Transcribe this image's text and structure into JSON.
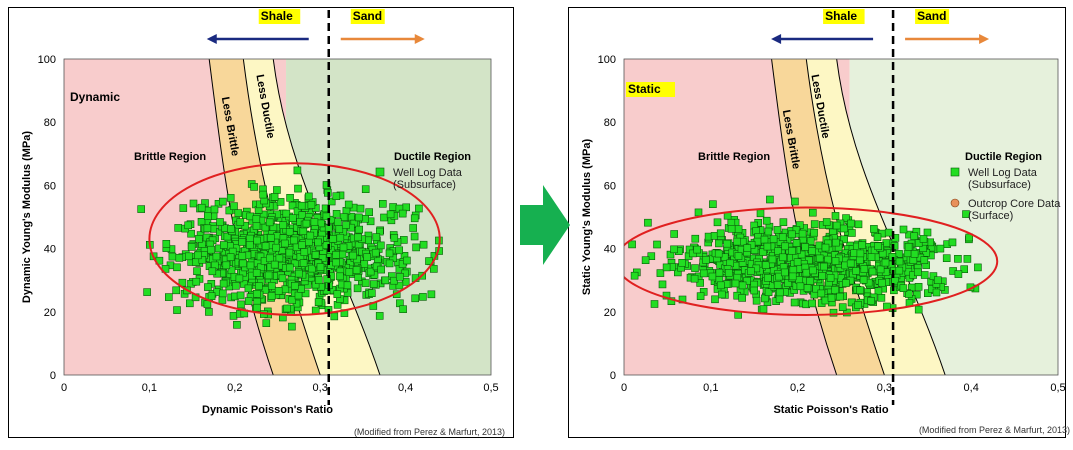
{
  "colors": {
    "brittle_zone": "#f8cccc",
    "ductile_zone_dynamic": "#d3e4c7",
    "ductile_zone_static": "#e6f1dc",
    "less_brittle_band": "#f8d79a",
    "less_ductile_band": "#fdf7c4",
    "marker_fill": "#22dd22",
    "marker_stroke": "#0a5a0a",
    "ellipse": "#e02020",
    "shale_arrow": "#1a2a80",
    "sand_arrow": "#e8883a",
    "highlight": "#ffff00",
    "big_arrow": "#16b050",
    "dynamic_label": "#ff0000",
    "outcrop_marker": "#e8905a"
  },
  "chart_data": [
    {
      "type": "scatter",
      "title": "Dynamic",
      "xlabel": "Dynamic Poisson's Ratio",
      "ylabel": "Dynamic Young's Modulus (MPa)",
      "xlim": [
        0,
        0.5
      ],
      "ylim": [
        0,
        100
      ],
      "xticks": [
        "0",
        "0,1",
        "0,2",
        "0,3",
        "0,4",
        "0,5"
      ],
      "yticks": [
        "0",
        "20",
        "40",
        "60",
        "80",
        "100"
      ],
      "regions": {
        "brittle": "Brittle Region",
        "ductile": "Ductile Region",
        "less_brittle": "Less Brittle",
        "less_ductile": "Less Ductile"
      },
      "zone_split_x": 0.26,
      "cutoff_x": 0.31,
      "direction_labels": {
        "shale": "Shale",
        "sand": "Sand"
      },
      "series": [
        {
          "name": "Well Log Data (Subsurface)",
          "legend_lines": [
            "Well Log Data",
            "(Subsurface)"
          ],
          "cloud": {
            "x_range": [
              0.08,
              0.44
            ],
            "y_range": [
              15,
              72
            ],
            "center": [
              0.27,
              38
            ],
            "count": 1000
          }
        }
      ],
      "ellipse": {
        "center": [
          0.27,
          43
        ],
        "semi_x": 0.17,
        "semi_y": 24
      }
    },
    {
      "type": "scatter",
      "title": "Static",
      "xlabel": "Static Poisson's Ratio",
      "ylabel": "Static Young's Modulus (MPa)",
      "xlim": [
        0,
        0.5
      ],
      "ylim": [
        0,
        100
      ],
      "xticks": [
        "0",
        "0,1",
        "0,2",
        "0,3",
        "0,4",
        "0,5"
      ],
      "yticks": [
        "0",
        "20",
        "40",
        "60",
        "80",
        "100"
      ],
      "regions": {
        "brittle": "Brittle Region",
        "ductile": "Ductile Region",
        "less_brittle": "Less Brittle",
        "less_ductile": "Less Ductile"
      },
      "zone_split_x": 0.26,
      "cutoff_x": 0.31,
      "direction_labels": {
        "shale": "Shale",
        "sand": "Sand"
      },
      "series": [
        {
          "name": "Well Log Data (Subsurface)",
          "legend_lines": [
            "Well Log Data",
            "(Subsurface)"
          ],
          "cloud": {
            "x_range": [
              0.0,
              0.41
            ],
            "y_range": [
              18,
              57
            ],
            "center": [
              0.22,
              35
            ],
            "count": 1000
          }
        },
        {
          "name": "Outcrop Core Data (Surface)",
          "legend_lines": [
            "Outcrop Core Data",
            "(Surface)"
          ],
          "marker": "circle",
          "points": []
        }
      ],
      "ellipse": {
        "center": [
          0.21,
          36
        ],
        "semi_x": 0.22,
        "semi_y": 17
      }
    }
  ],
  "captions": [
    "(Modified from Perez & Marfurt, 2013)",
    "(Modified from Perez & Marfurt, 2013)"
  ]
}
